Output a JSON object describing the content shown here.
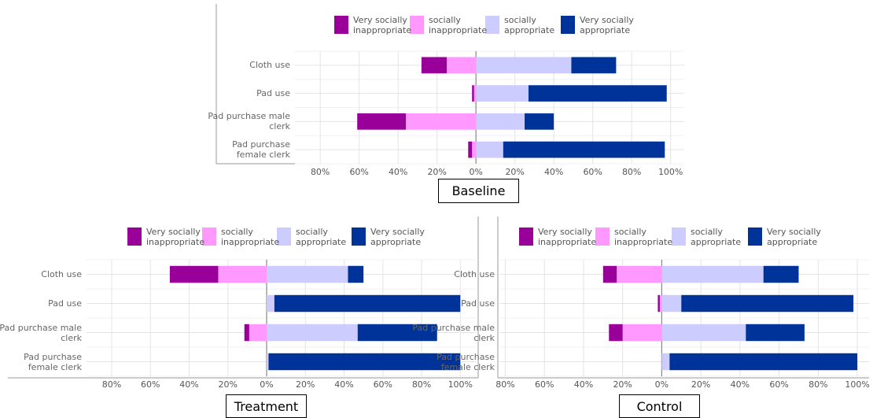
{
  "chart_data": [
    {
      "type": "bar",
      "title": "Baseline",
      "categories": [
        "Cloth use",
        "Pad use",
        "Pad purchase male clerk",
        "Pad purchase female clerk"
      ],
      "series": [
        {
          "name": "Very socially inappropriate",
          "color": "#990099",
          "values": [
            -13,
            -1,
            -25,
            -2
          ]
        },
        {
          "name": "socially inappropriate",
          "color": "#ff99ff",
          "values": [
            -15,
            -1,
            -36,
            -2
          ]
        },
        {
          "name": "socially appropriate",
          "color": "#ccccff",
          "values": [
            49,
            27,
            25,
            14
          ]
        },
        {
          "name": "Very socially appropriate",
          "color": "#003399",
          "values": [
            23,
            71,
            15,
            83
          ]
        }
      ],
      "xlim": [
        -93,
        107
      ],
      "xticks": [
        {
          "value": -80,
          "label": "80%"
        },
        {
          "value": -60,
          "label": "60%"
        },
        {
          "value": -40,
          "label": "40%"
        },
        {
          "value": -20,
          "label": "20%"
        },
        {
          "value": 0,
          "label": "0%"
        },
        {
          "value": 20,
          "label": "20%"
        },
        {
          "value": 40,
          "label": "40%"
        },
        {
          "value": 60,
          "label": "60%"
        },
        {
          "value": 80,
          "label": "80%"
        },
        {
          "value": 100,
          "label": "100%"
        }
      ],
      "grid": true
    },
    {
      "type": "bar",
      "title": "Treatment",
      "categories": [
        "Cloth use",
        "Pad use",
        "Pad purchase male clerk",
        "Pad purchase female clerk"
      ],
      "series": [
        {
          "name": "Very socially inappropriate",
          "color": "#990099",
          "values": [
            -25,
            0,
            -2.5,
            0
          ]
        },
        {
          "name": "socially inappropriate",
          "color": "#ff99ff",
          "values": [
            -25,
            0,
            -9,
            0
          ]
        },
        {
          "name": "socially appropriate",
          "color": "#ccccff",
          "values": [
            42,
            4,
            47,
            1
          ]
        },
        {
          "name": "Very socially appropriate",
          "color": "#003399",
          "values": [
            8,
            96,
            41,
            99
          ]
        }
      ],
      "xlim": [
        -93,
        108
      ],
      "xticks": [
        {
          "value": -80,
          "label": "80%"
        },
        {
          "value": -60,
          "label": "60%"
        },
        {
          "value": -40,
          "label": "40%"
        },
        {
          "value": -20,
          "label": "20%"
        },
        {
          "value": 0,
          "label": "0%"
        },
        {
          "value": 20,
          "label": "20%"
        },
        {
          "value": 40,
          "label": "40%"
        },
        {
          "value": 60,
          "label": "60%"
        },
        {
          "value": 80,
          "label": "80%"
        },
        {
          "value": 100,
          "label": "100%"
        }
      ],
      "grid": true
    },
    {
      "type": "bar",
      "title": "Control",
      "categories": [
        "Cloth use",
        "Pad use",
        "Pad purchase male clerk",
        "Pad purchase female clerk"
      ],
      "series": [
        {
          "name": "Very socially inappropriate",
          "color": "#990099",
          "values": [
            -7,
            -1,
            -7,
            0
          ]
        },
        {
          "name": "socially inappropriate",
          "color": "#ff99ff",
          "values": [
            -23,
            -1,
            -20,
            0
          ]
        },
        {
          "name": "socially appropriate",
          "color": "#ccccff",
          "values": [
            52,
            10,
            43,
            4
          ]
        },
        {
          "name": "Very socially appropriate",
          "color": "#003399",
          "values": [
            18,
            88,
            30,
            96
          ]
        }
      ],
      "xlim": [
        -83,
        106
      ],
      "xticks": [
        {
          "value": -80,
          "label": "80%"
        },
        {
          "value": -60,
          "label": "60%"
        },
        {
          "value": -40,
          "label": "40%"
        },
        {
          "value": -20,
          "label": "20%"
        },
        {
          "value": 0,
          "label": "0%"
        },
        {
          "value": 20,
          "label": "20%"
        },
        {
          "value": 40,
          "label": "40%"
        },
        {
          "value": 60,
          "label": "60%"
        },
        {
          "value": 80,
          "label": "80%"
        },
        {
          "value": 100,
          "label": "100%"
        }
      ],
      "grid": true
    }
  ]
}
